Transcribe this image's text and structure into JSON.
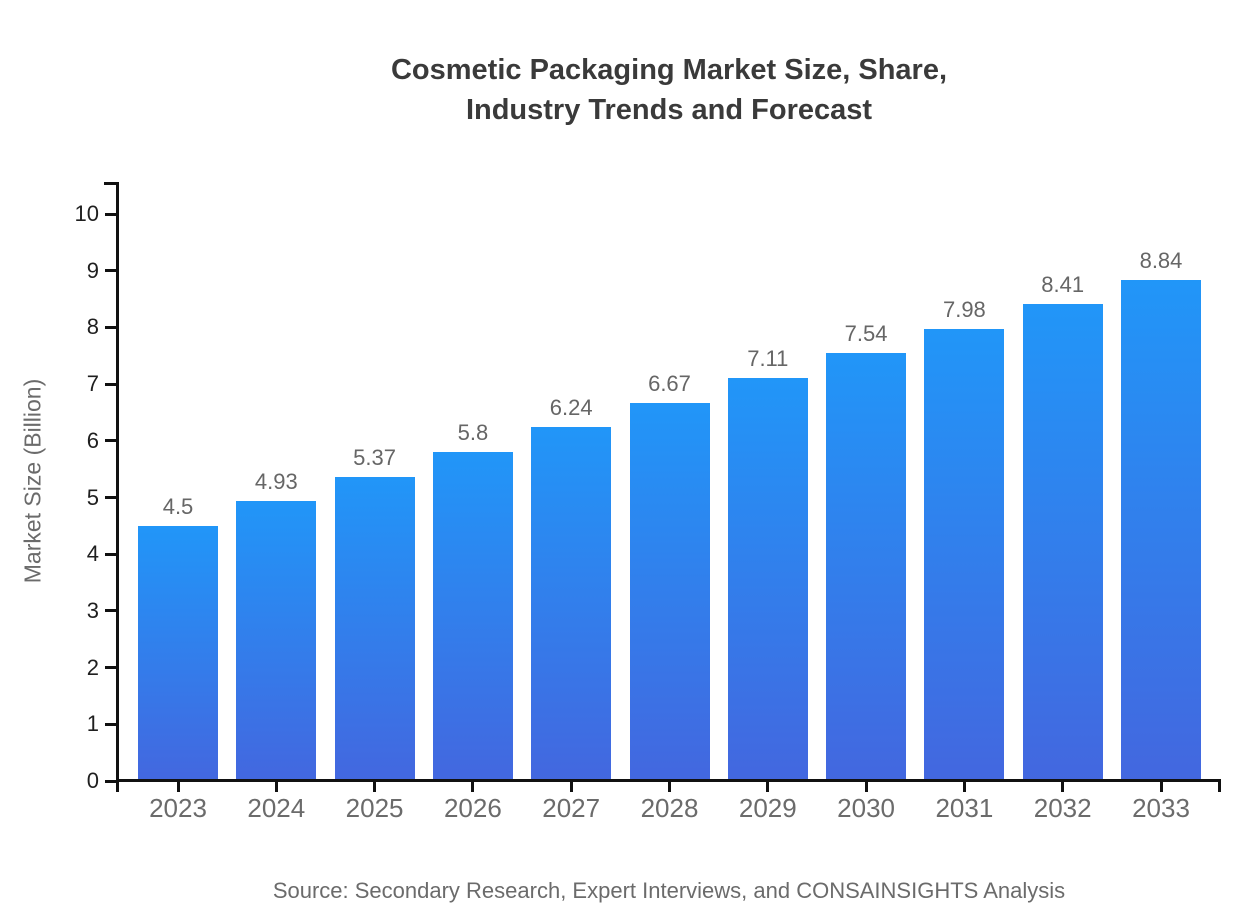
{
  "title": "Cosmetic Packaging Market Size, Share,\nIndustry Trends and Forecast",
  "footer": {
    "source_text": "Source: Secondary Research, Expert Interviews, and CONSAINSIGHTS Analysis"
  },
  "chart_data": {
    "type": "bar",
    "title": "Cosmetic Packaging Market Size, Share, Industry Trends and Forecast",
    "categories": [
      "2023",
      "2024",
      "2025",
      "2026",
      "2027",
      "2028",
      "2029",
      "2030",
      "2031",
      "2032",
      "2033"
    ],
    "values": [
      4.5,
      4.93,
      5.37,
      5.8,
      6.24,
      6.67,
      7.11,
      7.54,
      7.98,
      8.41,
      8.84
    ],
    "xlabel": "",
    "ylabel": "Market Size (Billion)",
    "ylim": [
      0,
      10
    ],
    "ytick_step": 1,
    "grid": false,
    "legend": false,
    "data_labels": true,
    "colors": {
      "bar_gradient_top": "#2196f8",
      "bar_gradient_bottom": "#4367df",
      "axis": "#111111",
      "tick_label": "#1f1f1f",
      "category_label": "#6b6b6b",
      "value_label": "#666666",
      "title": "#3a3a3a",
      "source": "#6b6b6b"
    }
  }
}
